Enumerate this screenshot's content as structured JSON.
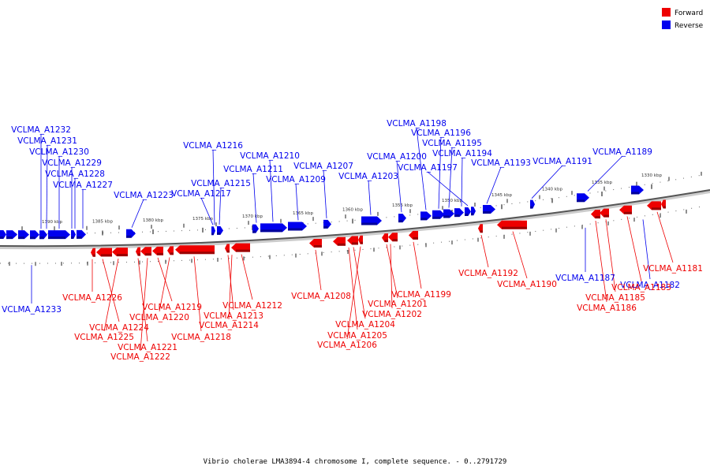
{
  "legend": {
    "forward": {
      "label": "Forward",
      "color": "#ee0000"
    },
    "reverse": {
      "label": "Reverse",
      "color": "#0000ee"
    }
  },
  "caption": "Vibrio cholerae LMA3894-4 chromosome I, complete sequence. - 0..2791729",
  "ticks": [
    "1390 kbp",
    "1385 kbp",
    "1380 kbp",
    "1375 kbp",
    "1370 kbp",
    "1365 kbp",
    "1360 kbp",
    "1355 kbp",
    "1350 kbp",
    "1345 kbp",
    "1340 kbp",
    "1335 kbp",
    "1330 kbp"
  ],
  "reverse_labels": [
    "VCLMA_A1232",
    "VCLMA_A1231",
    "VCLMA_A1230",
    "VCLMA_A1229",
    "VCLMA_A1228",
    "VCLMA_A1227",
    "VCLMA_A1223",
    "VCLMA_A1216",
    "VCLMA_A1217",
    "VCLMA_A1215",
    "VCLMA_A1211",
    "VCLMA_A1210",
    "VCLMA_A1209",
    "VCLMA_A1207",
    "VCLMA_A1203",
    "VCLMA_A1200",
    "VCLMA_A1198",
    "VCLMA_A1196",
    "VCLMA_A1195",
    "VCLMA_A1194",
    "VCLMA_A1197",
    "VCLMA_A1193",
    "VCLMA_A1191",
    "VCLMA_A1189",
    "VCLMA_A1233",
    "VCLMA_A1187",
    "VCLMA_A1182"
  ],
  "forward_labels": [
    "VCLMA_A1226",
    "VCLMA_A1224",
    "VCLMA_A1225",
    "VCLMA_A1221",
    "VCLMA_A1222",
    "VCLMA_A1219",
    "VCLMA_A1220",
    "VCLMA_A1218",
    "VCLMA_A1212",
    "VCLMA_A1213",
    "VCLMA_A1214",
    "VCLMA_A1208",
    "VCLMA_A1204",
    "VCLMA_A1205",
    "VCLMA_A1206",
    "VCLMA_A1201",
    "VCLMA_A1202",
    "VCLMA_A1199",
    "VCLMA_A1192",
    "VCLMA_A1190",
    "VCLMA_A1181",
    "VCLMA_A1183",
    "VCLMA_A1185",
    "VCLMA_A1186"
  ]
}
